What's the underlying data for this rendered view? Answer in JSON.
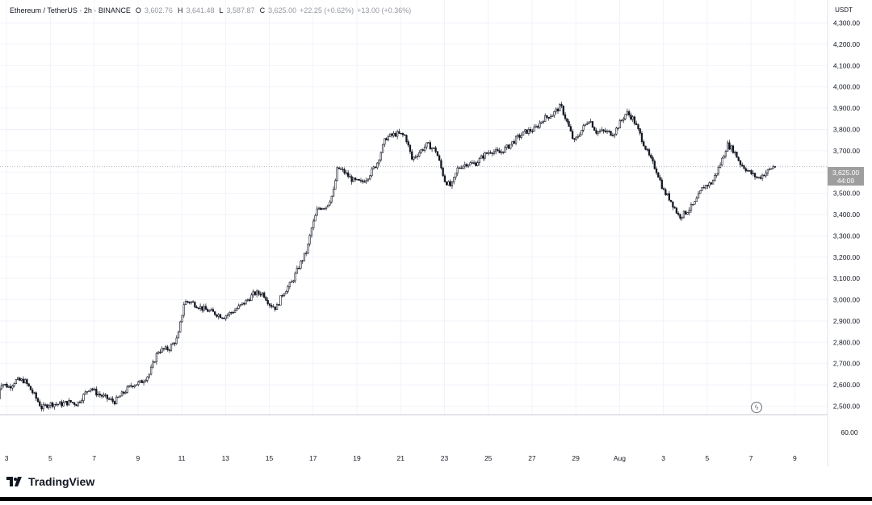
{
  "header": {
    "symbol": "Ethereum / TetherUS · 2h · BINANCE",
    "open_label": "O",
    "open": "3,602.76",
    "high_label": "H",
    "high": "3,641.48",
    "low_label": "L",
    "low": "3,587.87",
    "close_label": "C",
    "close": "3,625.00",
    "change": "+22.25 (+0.62%)",
    "change2": "+13.00 (+0.36%)"
  },
  "currency": "USDT",
  "last_price": {
    "price": "3,625.00",
    "countdown": "44:09"
  },
  "volume_axis_label": "60.00",
  "brand": "TradingView",
  "colors": {
    "line": "#131722",
    "grid": "#f0f3fa",
    "muted": "#9598a1",
    "tag": "#9e9e9e"
  },
  "chart_data": {
    "type": "candlestick",
    "title": "",
    "y_ticks": [
      "4,300.00",
      "4,200.00",
      "4,100.00",
      "4,000.00",
      "3,900.00",
      "3,800.00",
      "3,700.00",
      "3,600.00",
      "3,500.00",
      "3,400.00",
      "3,300.00",
      "3,200.00",
      "3,100.00",
      "3,000.00",
      "2,900.00",
      "2,800.00",
      "2,700.00",
      "2,600.00",
      "2,500.00"
    ],
    "y_tick_values": [
      4300,
      4200,
      4100,
      4000,
      3900,
      3800,
      3700,
      3600,
      3500,
      3400,
      3300,
      3200,
      3100,
      3000,
      2900,
      2800,
      2700,
      2600,
      2500
    ],
    "ylim": [
      2460,
      4340
    ],
    "x_ticks": [
      "3",
      "5",
      "7",
      "9",
      "11",
      "13",
      "15",
      "17",
      "19",
      "21",
      "23",
      "25",
      "27",
      "29",
      "Aug",
      "3",
      "5",
      "7",
      "9"
    ],
    "x_tick_index": [
      0,
      2,
      4,
      6,
      8,
      10,
      12,
      14,
      16,
      18,
      20,
      22,
      24,
      26,
      28,
      30,
      32,
      34,
      36
    ],
    "day_range": [
      -0.3,
      37.5
    ],
    "approx_path": [
      [
        -0.4,
        2480
      ],
      [
        -0.2,
        2610
      ],
      [
        0.2,
        2590
      ],
      [
        0.5,
        2620
      ],
      [
        0.9,
        2620
      ],
      [
        1.3,
        2560
      ],
      [
        1.7,
        2490
      ],
      [
        2.0,
        2510
      ],
      [
        2.6,
        2510
      ],
      [
        3.0,
        2520
      ],
      [
        3.3,
        2510
      ],
      [
        3.6,
        2550
      ],
      [
        3.9,
        2590
      ],
      [
        4.2,
        2560
      ],
      [
        4.6,
        2540
      ],
      [
        5.0,
        2520
      ],
      [
        5.4,
        2560
      ],
      [
        5.8,
        2600
      ],
      [
        6.2,
        2610
      ],
      [
        6.6,
        2650
      ],
      [
        7.0,
        2760
      ],
      [
        7.5,
        2770
      ],
      [
        7.9,
        2820
      ],
      [
        8.2,
        2990
      ],
      [
        8.5,
        2990
      ],
      [
        9.0,
        2960
      ],
      [
        9.5,
        2940
      ],
      [
        10.0,
        2920
      ],
      [
        10.5,
        2950
      ],
      [
        11.0,
        2990
      ],
      [
        11.4,
        3030
      ],
      [
        11.8,
        3030
      ],
      [
        12.1,
        2980
      ],
      [
        12.4,
        2960
      ],
      [
        12.7,
        3030
      ],
      [
        13.1,
        3080
      ],
      [
        13.5,
        3170
      ],
      [
        13.8,
        3230
      ],
      [
        14.0,
        3330
      ],
      [
        14.3,
        3430
      ],
      [
        14.7,
        3440
      ],
      [
        15.0,
        3500
      ],
      [
        15.2,
        3620
      ],
      [
        15.5,
        3600
      ],
      [
        15.9,
        3560
      ],
      [
        16.3,
        3550
      ],
      [
        16.6,
        3580
      ],
      [
        17.0,
        3640
      ],
      [
        17.4,
        3760
      ],
      [
        17.9,
        3780
      ],
      [
        18.3,
        3770
      ],
      [
        18.6,
        3660
      ],
      [
        18.9,
        3690
      ],
      [
        19.3,
        3730
      ],
      [
        19.7,
        3700
      ],
      [
        20.1,
        3560
      ],
      [
        20.4,
        3530
      ],
      [
        20.7,
        3620
      ],
      [
        21.1,
        3640
      ],
      [
        21.5,
        3640
      ],
      [
        21.9,
        3680
      ],
      [
        22.2,
        3700
      ],
      [
        22.6,
        3690
      ],
      [
        23.0,
        3720
      ],
      [
        23.4,
        3760
      ],
      [
        23.8,
        3790
      ],
      [
        24.2,
        3800
      ],
      [
        24.6,
        3850
      ],
      [
        25.0,
        3870
      ],
      [
        25.4,
        3910
      ],
      [
        25.7,
        3830
      ],
      [
        26.0,
        3740
      ],
      [
        26.3,
        3790
      ],
      [
        26.7,
        3850
      ],
      [
        27.0,
        3790
      ],
      [
        27.4,
        3790
      ],
      [
        27.8,
        3780
      ],
      [
        28.1,
        3830
      ],
      [
        28.4,
        3880
      ],
      [
        28.7,
        3850
      ],
      [
        29.0,
        3780
      ],
      [
        29.4,
        3680
      ],
      [
        29.8,
        3600
      ],
      [
        30.1,
        3510
      ],
      [
        30.4,
        3470
      ],
      [
        30.8,
        3390
      ],
      [
        31.1,
        3410
      ],
      [
        31.5,
        3450
      ],
      [
        31.9,
        3530
      ],
      [
        32.3,
        3550
      ],
      [
        32.7,
        3640
      ],
      [
        33.0,
        3730
      ],
      [
        33.3,
        3700
      ],
      [
        33.6,
        3640
      ],
      [
        34.0,
        3600
      ],
      [
        34.4,
        3570
      ],
      [
        34.8,
        3600
      ],
      [
        35.1,
        3625
      ]
    ],
    "last": 3625,
    "xlabel": "",
    "ylabel": "",
    "grid": true
  }
}
